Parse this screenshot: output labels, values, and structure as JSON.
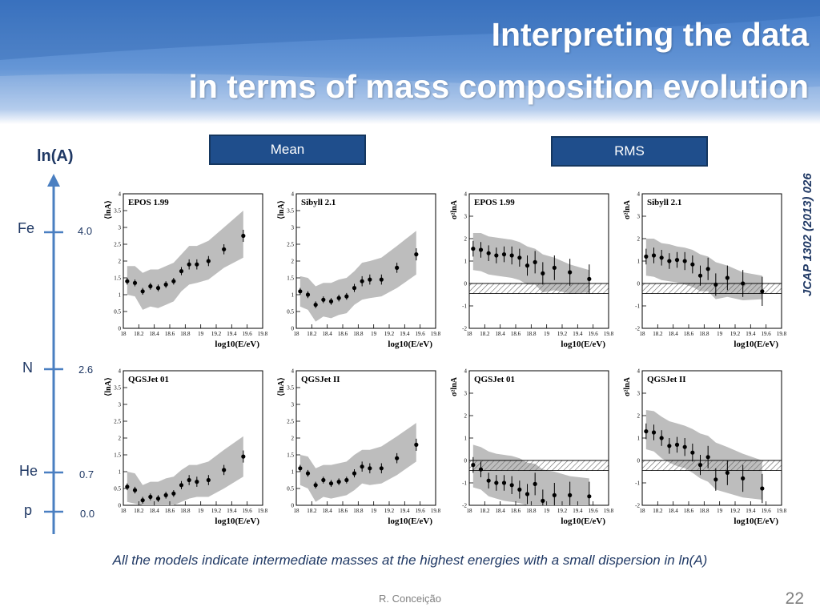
{
  "slide": {
    "title_line1": "Interpreting the data",
    "title_line2": "in terms of mass composition evolution",
    "mean_label": "Mean",
    "rms_label": "RMS",
    "side_citation": "JCAP 1302 (2013) 026",
    "caption": "All the models indicate intermediate masses at the highest energies with a small dispersion in ln(A)",
    "author": "R. Conceição",
    "page_number": "22",
    "colors": {
      "title_band": "#4a80cc",
      "button": "#1f4e8c",
      "scale": "#4a7fc1",
      "text": "#1f3864"
    }
  },
  "scale": {
    "axis_label": "ln(A)",
    "marks": [
      {
        "name": "Fe",
        "value": "4.0"
      },
      {
        "name": "N",
        "value": "2.6"
      },
      {
        "name": "He",
        "value": "0.7"
      },
      {
        "name": "p",
        "value": "0.0"
      }
    ]
  },
  "chart_data": [
    {
      "type": "scatter",
      "quantity": "mean",
      "model": "EPOS 1.99",
      "ylabel": "⟨lnA⟩",
      "xlabel": "log10(E/eV)",
      "xlim": [
        18,
        19.8
      ],
      "ylim": [
        0,
        4
      ],
      "xticks": [
        "18",
        "18.2",
        "18.4",
        "18.6",
        "18.8",
        "19",
        "19.2",
        "19.4",
        "19.6",
        "19.8"
      ],
      "yticks": [
        "0",
        "0.5",
        "1",
        "1.5",
        "2",
        "2.5",
        "3",
        "3.5",
        "4"
      ],
      "x": [
        18.05,
        18.15,
        18.25,
        18.35,
        18.45,
        18.55,
        18.65,
        18.75,
        18.85,
        18.95,
        19.1,
        19.3,
        19.55
      ],
      "y": [
        1.4,
        1.35,
        1.1,
        1.25,
        1.2,
        1.3,
        1.4,
        1.7,
        1.9,
        1.9,
        2.0,
        2.35,
        2.75
      ],
      "err": [
        0.1,
        0.1,
        0.1,
        0.1,
        0.1,
        0.1,
        0.1,
        0.12,
        0.15,
        0.15,
        0.15,
        0.15,
        0.18
      ],
      "band_upper": [
        1.85,
        1.85,
        1.65,
        1.75,
        1.75,
        1.85,
        1.95,
        2.2,
        2.45,
        2.45,
        2.6,
        3.0,
        3.5
      ],
      "band_lower": [
        1.0,
        0.95,
        0.55,
        0.65,
        0.6,
        0.7,
        0.8,
        1.1,
        1.3,
        1.35,
        1.45,
        1.8,
        2.1
      ]
    },
    {
      "type": "scatter",
      "quantity": "mean",
      "model": "Sibyll 2.1",
      "ylabel": "⟨lnA⟩",
      "xlabel": "log10(E/eV)",
      "xlim": [
        18,
        19.8
      ],
      "ylim": [
        0,
        4
      ],
      "xticks": [
        "18",
        "18.2",
        "18.4",
        "18.6",
        "18.8",
        "19",
        "19.2",
        "19.4",
        "19.6",
        "19.8"
      ],
      "yticks": [
        "0",
        "0.5",
        "1",
        "1.5",
        "2",
        "2.5",
        "3",
        "3.5",
        "4"
      ],
      "x": [
        18.05,
        18.15,
        18.25,
        18.35,
        18.45,
        18.55,
        18.65,
        18.75,
        18.85,
        18.95,
        19.1,
        19.3,
        19.55
      ],
      "y": [
        1.1,
        1.0,
        0.7,
        0.85,
        0.8,
        0.9,
        0.95,
        1.2,
        1.4,
        1.45,
        1.45,
        1.8,
        2.2
      ],
      "err": [
        0.1,
        0.1,
        0.1,
        0.1,
        0.1,
        0.1,
        0.1,
        0.12,
        0.15,
        0.15,
        0.15,
        0.15,
        0.18
      ],
      "band_upper": [
        1.55,
        1.5,
        1.25,
        1.35,
        1.35,
        1.45,
        1.5,
        1.7,
        1.95,
        2.0,
        2.1,
        2.45,
        2.9
      ],
      "band_lower": [
        0.65,
        0.55,
        0.2,
        0.35,
        0.3,
        0.4,
        0.45,
        0.7,
        0.85,
        0.9,
        0.95,
        1.2,
        1.6
      ]
    },
    {
      "type": "scatter",
      "quantity": "rms",
      "model": "EPOS 1.99",
      "ylabel": "σ²lnA",
      "xlabel": "log10(E/eV)",
      "xlim": [
        18,
        19.8
      ],
      "ylim": [
        -2,
        4
      ],
      "xticks": [
        "18",
        "18.2",
        "18.4",
        "18.6",
        "18.8",
        "19",
        "19.2",
        "19.4",
        "19.6",
        "19.8"
      ],
      "yticks": [
        "-2",
        "-1",
        "0",
        "1",
        "2",
        "3",
        "4"
      ],
      "x": [
        18.05,
        18.15,
        18.25,
        18.35,
        18.45,
        18.55,
        18.65,
        18.75,
        18.85,
        18.95,
        19.1,
        19.3,
        19.55
      ],
      "y": [
        1.55,
        1.5,
        1.35,
        1.25,
        1.3,
        1.25,
        1.15,
        0.8,
        0.95,
        0.45,
        0.7,
        0.5,
        0.2
      ],
      "err": [
        0.35,
        0.35,
        0.35,
        0.35,
        0.35,
        0.4,
        0.4,
        0.45,
        0.5,
        0.5,
        0.55,
        0.6,
        0.65
      ],
      "band_upper": [
        2.25,
        2.25,
        2.1,
        2.05,
        2.0,
        1.95,
        1.85,
        1.65,
        1.55,
        1.3,
        1.15,
        0.85,
        0.6
      ],
      "band_lower": [
        0.6,
        0.55,
        0.4,
        0.35,
        0.3,
        0.25,
        0.15,
        -0.05,
        -0.05,
        -0.4,
        -0.3,
        -0.45,
        -0.4
      ],
      "hatch_range": [
        -0.45,
        0
      ]
    },
    {
      "type": "scatter",
      "quantity": "rms",
      "model": "Sibyll 2.1",
      "ylabel": "σ²lnA",
      "xlabel": "log10(E/eV)",
      "xlim": [
        18,
        19.8
      ],
      "ylim": [
        -2,
        4
      ],
      "xticks": [
        "18",
        "18.2",
        "18.4",
        "18.6",
        "18.8",
        "19",
        "19.2",
        "19.4",
        "19.6",
        "19.8"
      ],
      "yticks": [
        "-2",
        "-1",
        "0",
        "1",
        "2",
        "3",
        "4"
      ],
      "x": [
        18.05,
        18.15,
        18.25,
        18.35,
        18.45,
        18.55,
        18.65,
        18.75,
        18.85,
        18.95,
        19.1,
        19.3,
        19.55
      ],
      "y": [
        1.2,
        1.25,
        1.15,
        1.0,
        1.05,
        1.0,
        0.85,
        0.35,
        0.65,
        -0.05,
        0.25,
        0.0,
        -0.35
      ],
      "err": [
        0.35,
        0.35,
        0.35,
        0.35,
        0.35,
        0.4,
        0.4,
        0.45,
        0.5,
        0.5,
        0.55,
        0.6,
        0.65
      ],
      "band_upper": [
        2.0,
        2.0,
        1.8,
        1.75,
        1.65,
        1.6,
        1.5,
        1.3,
        1.2,
        0.95,
        0.8,
        0.5,
        0.35
      ],
      "band_lower": [
        0.35,
        0.3,
        0.15,
        0.1,
        0.05,
        -0.05,
        -0.15,
        -0.35,
        -0.35,
        -0.7,
        -0.6,
        -0.75,
        -0.7
      ],
      "hatch_range": [
        -0.45,
        0
      ]
    },
    {
      "type": "scatter",
      "quantity": "mean",
      "model": "QGSJet 01",
      "ylabel": "⟨lnA⟩",
      "xlabel": "log10(E/eV)",
      "xlim": [
        18,
        19.8
      ],
      "ylim": [
        0,
        4
      ],
      "xticks": [
        "18",
        "18.2",
        "18.4",
        "18.6",
        "18.8",
        "19",
        "19.2",
        "19.4",
        "19.6",
        "19.8"
      ],
      "yticks": [
        "0",
        "0.5",
        "1",
        "1.5",
        "2",
        "2.5",
        "3",
        "3.5",
        "4"
      ],
      "x": [
        18.05,
        18.15,
        18.25,
        18.35,
        18.45,
        18.55,
        18.65,
        18.75,
        18.85,
        18.95,
        19.1,
        19.3,
        19.55
      ],
      "y": [
        0.55,
        0.45,
        0.15,
        0.25,
        0.2,
        0.3,
        0.35,
        0.6,
        0.75,
        0.7,
        0.75,
        1.05,
        1.45
      ],
      "err": [
        0.1,
        0.1,
        0.1,
        0.1,
        0.1,
        0.1,
        0.1,
        0.12,
        0.15,
        0.15,
        0.15,
        0.15,
        0.18
      ],
      "band_upper": [
        1.0,
        0.95,
        0.6,
        0.7,
        0.7,
        0.8,
        0.85,
        1.05,
        1.2,
        1.2,
        1.3,
        1.65,
        2.05
      ],
      "band_lower": [
        0.1,
        0.05,
        0.0,
        0.0,
        0.0,
        0.0,
        0.0,
        0.1,
        0.2,
        0.25,
        0.25,
        0.5,
        0.85
      ]
    },
    {
      "type": "scatter",
      "quantity": "mean",
      "model": "QGSJet II",
      "ylabel": "⟨lnA⟩",
      "xlabel": "log10(E/eV)",
      "xlim": [
        18,
        19.8
      ],
      "ylim": [
        0,
        4
      ],
      "xticks": [
        "18",
        "18.2",
        "18.4",
        "18.6",
        "18.8",
        "19",
        "19.2",
        "19.4",
        "19.6",
        "19.8"
      ],
      "yticks": [
        "0",
        "0.5",
        "1",
        "1.5",
        "2",
        "2.5",
        "3",
        "3.5",
        "4"
      ],
      "x": [
        18.05,
        18.15,
        18.25,
        18.35,
        18.45,
        18.55,
        18.65,
        18.75,
        18.85,
        18.95,
        19.1,
        19.3,
        19.55
      ],
      "y": [
        1.1,
        0.95,
        0.6,
        0.75,
        0.65,
        0.7,
        0.75,
        0.95,
        1.15,
        1.1,
        1.1,
        1.4,
        1.8
      ],
      "err": [
        0.1,
        0.1,
        0.1,
        0.1,
        0.1,
        0.1,
        0.1,
        0.12,
        0.15,
        0.15,
        0.15,
        0.15,
        0.18
      ],
      "band_upper": [
        1.5,
        1.45,
        1.1,
        1.2,
        1.2,
        1.25,
        1.3,
        1.5,
        1.65,
        1.65,
        1.75,
        2.05,
        2.45
      ],
      "band_lower": [
        0.6,
        0.5,
        0.1,
        0.25,
        0.2,
        0.25,
        0.3,
        0.45,
        0.65,
        0.6,
        0.65,
        0.9,
        1.3
      ]
    },
    {
      "type": "scatter",
      "quantity": "rms",
      "model": "QGSJet 01",
      "ylabel": "σ²lnA",
      "xlabel": "log10(E/eV)",
      "xlim": [
        18,
        19.8
      ],
      "ylim": [
        -2,
        4
      ],
      "xticks": [
        "18",
        "18.2",
        "18.4",
        "18.6",
        "18.8",
        "19",
        "19.2",
        "19.4",
        "19.6",
        "19.8"
      ],
      "yticks": [
        "-2",
        "-1",
        "0",
        "1",
        "2",
        "3",
        "4"
      ],
      "x": [
        18.05,
        18.15,
        18.25,
        18.35,
        18.45,
        18.55,
        18.65,
        18.75,
        18.85,
        18.95,
        19.1,
        19.3,
        19.55
      ],
      "y": [
        -0.2,
        -0.4,
        -0.9,
        -1.0,
        -1.0,
        -1.1,
        -1.3,
        -1.5,
        -1.05,
        -1.8,
        -1.55,
        -1.55,
        -1.6
      ],
      "err": [
        0.35,
        0.35,
        0.35,
        0.35,
        0.35,
        0.4,
        0.4,
        0.45,
        0.5,
        0.5,
        0.55,
        0.6,
        0.65
      ],
      "band_upper": [
        0.7,
        0.6,
        0.4,
        0.3,
        0.25,
        0.2,
        0.1,
        -0.1,
        -0.15,
        -0.4,
        -0.5,
        -0.7,
        -0.8
      ],
      "band_lower": [
        -1.2,
        -1.3,
        -1.6,
        -1.7,
        -1.8,
        -1.85,
        -1.9,
        -2.0,
        -2.0,
        -2.0,
        -2.0,
        -2.0,
        -2.0
      ],
      "hatch_range": [
        -0.45,
        0
      ]
    },
    {
      "type": "scatter",
      "quantity": "rms",
      "model": "QGSJet II",
      "ylabel": "σ²lnA",
      "xlabel": "log10(E/eV)",
      "xlim": [
        18,
        19.8
      ],
      "ylim": [
        -2,
        4
      ],
      "xticks": [
        "18",
        "18.2",
        "18.4",
        "18.6",
        "18.8",
        "19",
        "19.2",
        "19.4",
        "19.6",
        "19.8"
      ],
      "yticks": [
        "-2",
        "-1",
        "0",
        "1",
        "2",
        "3",
        "4"
      ],
      "x": [
        18.05,
        18.15,
        18.25,
        18.35,
        18.45,
        18.55,
        18.65,
        18.75,
        18.85,
        18.95,
        19.1,
        19.3,
        19.55
      ],
      "y": [
        1.3,
        1.25,
        1.0,
        0.65,
        0.7,
        0.6,
        0.35,
        -0.2,
        0.15,
        -0.85,
        -0.55,
        -0.8,
        -1.25
      ],
      "err": [
        0.35,
        0.35,
        0.35,
        0.35,
        0.35,
        0.4,
        0.4,
        0.45,
        0.5,
        0.5,
        0.55,
        0.6,
        0.65
      ],
      "band_upper": [
        2.25,
        2.2,
        1.95,
        1.75,
        1.65,
        1.55,
        1.4,
        1.2,
        1.1,
        0.8,
        0.6,
        0.3,
        0.0
      ],
      "band_lower": [
        0.5,
        0.4,
        0.1,
        -0.1,
        -0.25,
        -0.35,
        -0.55,
        -0.8,
        -0.95,
        -1.3,
        -1.45,
        -1.65,
        -1.75
      ],
      "hatch_range": [
        -0.45,
        0
      ]
    }
  ]
}
